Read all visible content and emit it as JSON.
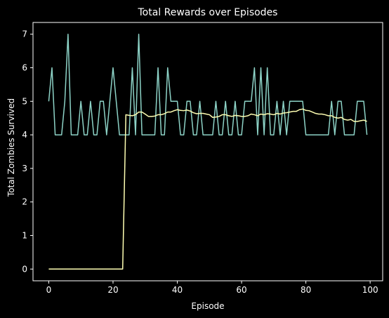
{
  "chart_data": {
    "type": "line",
    "title": "Total Rewards over Episodes",
    "xlabel": "Episode",
    "ylabel": "Total Zombies Survived",
    "xlim": [
      -4.9,
      103.9
    ],
    "ylim": [
      -0.35,
      7.35
    ],
    "x_ticks": [
      0,
      20,
      40,
      60,
      80,
      100
    ],
    "y_ticks": [
      0,
      1,
      2,
      3,
      4,
      5,
      6,
      7
    ],
    "grid": false,
    "legend": "none",
    "background_color": "#000000",
    "axis_color": "#ffffff",
    "series": [
      {
        "color": "#8dd3c7",
        "x": [
          0,
          1,
          2,
          3,
          4,
          5,
          6,
          7,
          8,
          9,
          10,
          11,
          12,
          13,
          14,
          15,
          16,
          17,
          18,
          19,
          20,
          21,
          22,
          23,
          24,
          25,
          26,
          27,
          28,
          29,
          30,
          31,
          32,
          33,
          34,
          35,
          36,
          37,
          38,
          39,
          40,
          41,
          42,
          43,
          44,
          45,
          46,
          47,
          48,
          49,
          50,
          51,
          52,
          53,
          54,
          55,
          56,
          57,
          58,
          59,
          60,
          61,
          62,
          63,
          64,
          65,
          66,
          67,
          68,
          69,
          70,
          71,
          72,
          73,
          74,
          75,
          76,
          77,
          78,
          79,
          80,
          81,
          82,
          83,
          84,
          85,
          86,
          87,
          88,
          89,
          90,
          91,
          92,
          93,
          94,
          95,
          96,
          97,
          98,
          99
        ],
        "y": [
          5,
          6,
          4,
          4,
          4,
          5,
          7,
          4,
          4,
          4,
          5,
          4,
          4,
          5,
          4,
          4,
          5,
          5,
          4,
          5,
          6,
          5,
          4,
          4,
          4,
          4,
          6,
          4,
          7,
          4,
          4,
          4,
          4,
          4,
          6,
          4,
          4,
          6,
          5,
          5,
          5,
          4,
          4,
          5,
          5,
          4,
          4,
          5,
          4,
          4,
          4,
          4,
          5,
          4,
          4,
          5,
          4,
          4,
          5,
          4,
          4,
          5,
          5,
          5,
          6,
          4,
          6,
          4,
          6,
          4,
          4,
          5,
          4,
          5,
          4,
          5,
          5,
          5,
          5,
          5,
          4,
          4,
          4,
          4,
          4,
          4,
          4,
          4,
          5,
          4,
          5,
          5,
          4,
          4,
          4,
          4,
          5,
          5,
          5,
          4
        ]
      },
      {
        "color": "#ffffb3",
        "x": [
          0,
          1,
          2,
          3,
          4,
          5,
          6,
          7,
          8,
          9,
          10,
          11,
          12,
          13,
          14,
          15,
          16,
          17,
          18,
          19,
          20,
          21,
          22,
          23,
          24,
          25,
          26,
          27,
          28,
          29,
          30,
          31,
          32,
          33,
          34,
          35,
          36,
          37,
          38,
          39,
          40,
          41,
          42,
          43,
          44,
          45,
          46,
          47,
          48,
          49,
          50,
          51,
          52,
          53,
          54,
          55,
          56,
          57,
          58,
          59,
          60,
          61,
          62,
          63,
          64,
          65,
          66,
          67,
          68,
          69,
          70,
          71,
          72,
          73,
          74,
          75,
          76,
          77,
          78,
          79,
          80,
          81,
          82,
          83,
          84,
          85,
          86,
          87,
          88,
          89,
          90,
          91,
          92,
          93,
          94,
          95,
          96,
          97,
          98,
          99
        ],
        "y": [
          0,
          0,
          0,
          0,
          0,
          0,
          0,
          0,
          0,
          0,
          0,
          0,
          0,
          0,
          0,
          0,
          0,
          0,
          0,
          0,
          0,
          0,
          0,
          0,
          4.6,
          4.58,
          4.57,
          4.6,
          4.68,
          4.68,
          4.62,
          4.55,
          4.55,
          4.56,
          4.6,
          4.6,
          4.63,
          4.68,
          4.68,
          4.72,
          4.75,
          4.73,
          4.72,
          4.74,
          4.71,
          4.66,
          4.63,
          4.64,
          4.64,
          4.62,
          4.6,
          4.52,
          4.53,
          4.55,
          4.6,
          4.6,
          4.57,
          4.55,
          4.58,
          4.57,
          4.55,
          4.55,
          4.57,
          4.62,
          4.6,
          4.57,
          4.62,
          4.6,
          4.63,
          4.62,
          4.6,
          4.64,
          4.62,
          4.65,
          4.66,
          4.68,
          4.7,
          4.7,
          4.75,
          4.77,
          4.73,
          4.72,
          4.68,
          4.64,
          4.62,
          4.62,
          4.6,
          4.57,
          4.57,
          4.52,
          4.5,
          4.52,
          4.46,
          4.44,
          4.46,
          4.4,
          4.4,
          4.42,
          4.44,
          4.4
        ]
      }
    ]
  }
}
